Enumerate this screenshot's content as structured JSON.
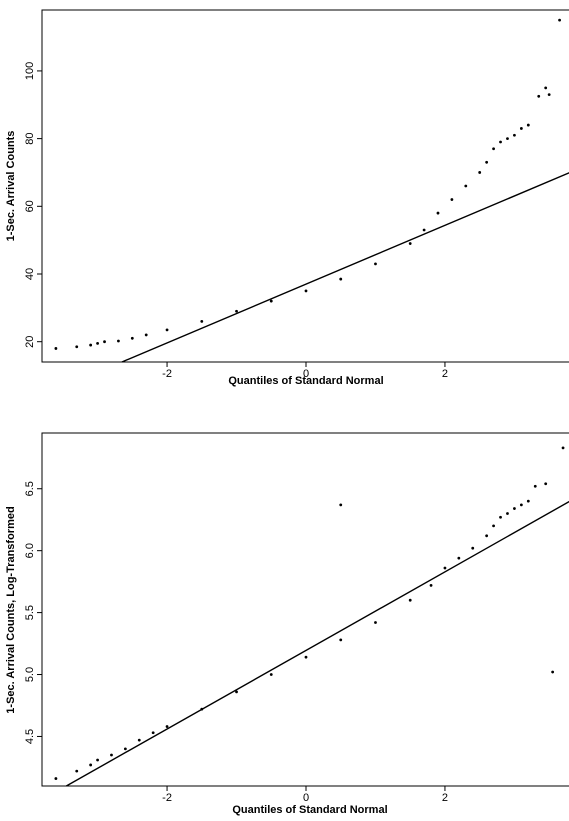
{
  "chart_data": [
    {
      "type": "scatter",
      "title": "",
      "xlabel": "Quantiles of Standard Normal",
      "ylabel": "1-Sec. Arrival Counts",
      "xlim": [
        -3.8,
        3.8
      ],
      "ylim": [
        14,
        118
      ],
      "x_ticks": [
        -2,
        0,
        2
      ],
      "x_tick_labels": [
        "-2",
        "0",
        "2"
      ],
      "y_ticks": [
        20,
        40,
        60,
        80,
        100
      ],
      "y_tick_labels": [
        "20",
        "40",
        "60",
        "80",
        "100"
      ],
      "grid": false,
      "series": [
        {
          "kind": "points",
          "points": [
            [
              -3.6,
              18
            ],
            [
              -3.3,
              18.5
            ],
            [
              -3.1,
              19
            ],
            [
              -3.0,
              19.5
            ],
            [
              -2.9,
              20
            ],
            [
              -2.7,
              20.2
            ],
            [
              -2.5,
              21
            ],
            [
              -2.3,
              22
            ],
            [
              -2.0,
              23.5
            ],
            [
              -1.5,
              26
            ],
            [
              -1.0,
              29
            ],
            [
              -0.5,
              32
            ],
            [
              0,
              35
            ],
            [
              0.5,
              38.5
            ],
            [
              1.0,
              43
            ],
            [
              1.5,
              49
            ],
            [
              1.7,
              53
            ],
            [
              1.9,
              58
            ],
            [
              2.1,
              62
            ],
            [
              2.3,
              66
            ],
            [
              2.5,
              70
            ],
            [
              2.6,
              73
            ],
            [
              2.7,
              77
            ],
            [
              2.8,
              79
            ],
            [
              2.9,
              80
            ],
            [
              3.0,
              81
            ],
            [
              3.1,
              83
            ],
            [
              3.2,
              84
            ],
            [
              3.35,
              92.5
            ],
            [
              3.45,
              95
            ],
            [
              3.5,
              93
            ],
            [
              3.65,
              115
            ]
          ]
        },
        {
          "kind": "reference-line",
          "points": [
            [
              -2.65,
              14
            ],
            [
              3.8,
              70
            ]
          ]
        }
      ]
    },
    {
      "type": "scatter",
      "title": "",
      "xlabel": "Quantiles of Standard Normal",
      "ylabel": "1-Sec. Arrival Counts, Log-Transformed",
      "xlim": [
        -3.8,
        3.8
      ],
      "ylim": [
        4.1,
        6.95
      ],
      "x_ticks": [
        -2,
        0,
        2
      ],
      "x_tick_labels": [
        "-2",
        "0",
        "2"
      ],
      "y_ticks": [
        4.5,
        5.0,
        5.5,
        6.0,
        6.5
      ],
      "y_tick_labels": [
        "4.5",
        "5.0",
        "5.5",
        "6.0",
        "6.5"
      ],
      "grid": false,
      "series": [
        {
          "kind": "points",
          "points": [
            [
              -3.6,
              4.16
            ],
            [
              -3.3,
              4.22
            ],
            [
              -3.1,
              4.27
            ],
            [
              -3.0,
              4.31
            ],
            [
              -2.8,
              4.35
            ],
            [
              -2.6,
              4.4
            ],
            [
              -2.4,
              4.47
            ],
            [
              -2.2,
              4.53
            ],
            [
              -2.0,
              4.58
            ],
            [
              -1.5,
              4.72
            ],
            [
              -1.0,
              4.86
            ],
            [
              -0.5,
              5.0
            ],
            [
              0,
              5.14
            ],
            [
              0.5,
              5.28
            ],
            [
              1.0,
              5.42
            ],
            [
              1.5,
              5.6
            ],
            [
              1.8,
              5.72
            ],
            [
              2.0,
              5.86
            ],
            [
              2.2,
              5.94
            ],
            [
              2.4,
              6.02
            ],
            [
              2.6,
              6.12
            ],
            [
              2.7,
              6.2
            ],
            [
              2.8,
              6.27
            ],
            [
              2.9,
              6.3
            ],
            [
              3.0,
              6.34
            ],
            [
              3.1,
              6.37
            ],
            [
              3.2,
              6.4
            ],
            [
              3.3,
              6.52
            ],
            [
              3.45,
              6.54
            ],
            [
              0.5,
              6.37
            ],
            [
              3.55,
              5.02
            ],
            [
              3.7,
              6.83
            ]
          ]
        },
        {
          "kind": "reference-line",
          "points": [
            [
              -3.45,
              4.1
            ],
            [
              3.8,
              6.4
            ]
          ]
        }
      ]
    }
  ]
}
